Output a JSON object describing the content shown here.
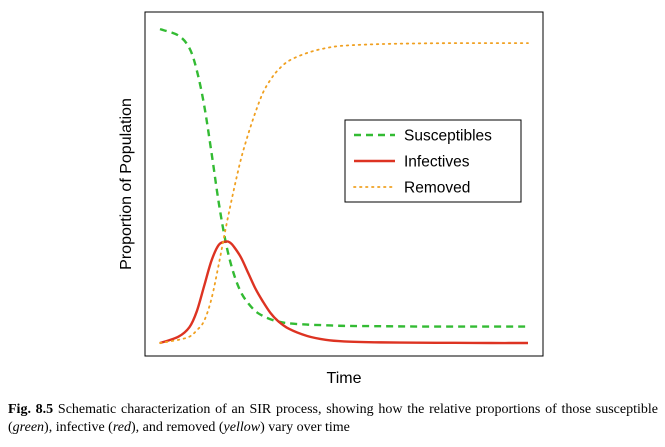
{
  "chart_data": {
    "type": "line",
    "title": "",
    "xlabel": "Time",
    "ylabel": "Proportion of Population",
    "xlim": [
      0,
      10
    ],
    "ylim": [
      0,
      1
    ],
    "x_ticks": false,
    "y_ticks": false,
    "grid": false,
    "legend_position": "right-center",
    "series": [
      {
        "name": "Susceptibles",
        "color": "#33bb33",
        "style": "dashed",
        "x": [
          0,
          0.5,
          0.8,
          1.0,
          1.2,
          1.4,
          1.6,
          1.8,
          2.0,
          2.2,
          2.4,
          2.6,
          2.8,
          3.0,
          3.2,
          3.5,
          4.0,
          4.5,
          5.0,
          6.0,
          7.0,
          8.0,
          9.0,
          10.0
        ],
        "values": [
          0.99,
          0.97,
          0.93,
          0.86,
          0.75,
          0.6,
          0.44,
          0.31,
          0.22,
          0.16,
          0.125,
          0.1,
          0.085,
          0.075,
          0.068,
          0.062,
          0.058,
          0.056,
          0.054,
          0.053,
          0.052,
          0.052,
          0.052,
          0.052
        ]
      },
      {
        "name": "Infectives",
        "color": "#dd3322",
        "style": "solid",
        "x": [
          0,
          0.5,
          0.8,
          1.0,
          1.2,
          1.4,
          1.6,
          1.8,
          1.9,
          2.0,
          2.2,
          2.4,
          2.6,
          2.8,
          3.0,
          3.2,
          3.5,
          4.0,
          4.5,
          5.0,
          6.0,
          7.0,
          8.0,
          9.0,
          10.0
        ],
        "values": [
          0.0,
          0.02,
          0.05,
          0.1,
          0.18,
          0.26,
          0.31,
          0.32,
          0.317,
          0.305,
          0.27,
          0.22,
          0.17,
          0.13,
          0.095,
          0.07,
          0.045,
          0.022,
          0.01,
          0.005,
          0.002,
          0.001,
          0.0005,
          0.0,
          0.0
        ]
      },
      {
        "name": "Removed",
        "color": "#f0a020",
        "style": "dotted",
        "x": [
          0,
          0.5,
          0.8,
          1.0,
          1.2,
          1.4,
          1.6,
          1.8,
          2.0,
          2.2,
          2.4,
          2.6,
          2.8,
          3.0,
          3.2,
          3.5,
          4.0,
          4.5,
          5.0,
          6.0,
          7.0,
          8.0,
          9.0,
          10.0
        ],
        "values": [
          0.0,
          0.01,
          0.02,
          0.04,
          0.07,
          0.14,
          0.25,
          0.37,
          0.48,
          0.58,
          0.66,
          0.73,
          0.79,
          0.83,
          0.86,
          0.89,
          0.915,
          0.93,
          0.938,
          0.943,
          0.945,
          0.946,
          0.946,
          0.946
        ]
      }
    ]
  },
  "caption": {
    "label": "Fig. 8.5",
    "part1": " Schematic characterization of an SIR process, showing how the relative proportions of those susceptible (",
    "green": "green",
    "part2": "), infective (",
    "red": "red",
    "part3": "), and removed (",
    "yellow": "yellow",
    "part4": ") vary over time"
  }
}
